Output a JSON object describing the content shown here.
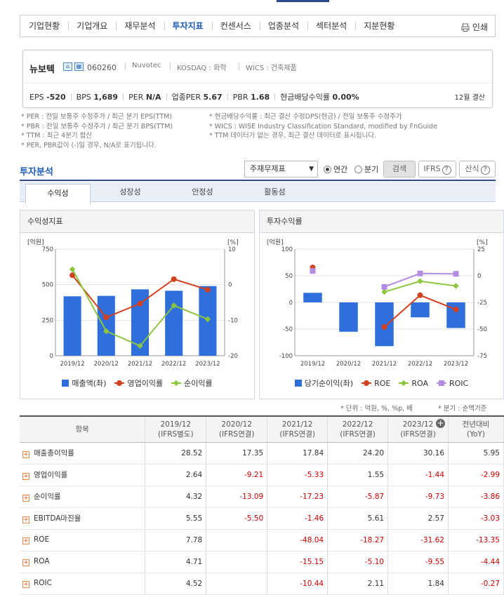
{
  "nav": {
    "tabs": [
      "기업현황",
      "기업개요",
      "재무분석",
      "투자지표",
      "컨센서스",
      "업종분석",
      "섹터분석",
      "지분현황"
    ],
    "active_index": 3,
    "print_label": "인쇄"
  },
  "company": {
    "name": "뉴보텍",
    "code": "060260",
    "eng_name": "Nuvotec",
    "market": "KOSDAQ : 화학",
    "wics": "WICS : 건축제품",
    "eps_label": "EPS",
    "eps_value": "-520",
    "bps_label": "BPS",
    "bps_value": "1,689",
    "per_label": "PER",
    "per_value": "N/A",
    "sector_per_label": "업종PER",
    "sector_per_value": "5.67",
    "pbr_label": "PBR",
    "pbr_value": "1.68",
    "div_label": "현금배당수익률",
    "div_value": "0.00%",
    "settlement": "12월 결산"
  },
  "notes_left": [
    "* PER : 전일 보통주 수정주가 / 최근 분기 EPS(TTM)",
    "* PBR : 전일 보통주 수정주가 / 최근 분기 BPS(TTM)",
    "* TTM : 최근 4분기 합산",
    "* PER, PBR값이 (-)일 경우, N/A로 표기됩니다."
  ],
  "notes_right": [
    "* 현금배당수익률 : 최근 결산 수정DPS(현금) / 전일 보통주 수정주가",
    "* WICS : WISE Industry Classification Standard, modified by FnGuide",
    "* TTM 데이터가 없는 경우, 최근 결산 데이터로 표시됩니다."
  ],
  "analysis": {
    "title": "투자분석",
    "select_value": "주재무제표",
    "radio_annual": "연간",
    "radio_quarter": "분기",
    "search_label": "검색",
    "ifrs_label": "IFRS",
    "calc_label": "산식",
    "tabs": [
      "수익성",
      "성장성",
      "안정성",
      "활동성"
    ]
  },
  "chart_left_title": "수익성지표",
  "chart_right_title": "투자수익률",
  "chart_data": [
    {
      "type": "bar",
      "categories": [
        "2019/12",
        "2020/12",
        "2021/12",
        "2022/12",
        "2023/12"
      ],
      "ylabel": "[억원]",
      "y2label": "[%]",
      "ylim": [
        0,
        750
      ],
      "y2lim": [
        -20,
        10
      ],
      "yticks": [
        0,
        250,
        500,
        750
      ],
      "y2ticks": [
        -20,
        -10,
        0,
        10
      ],
      "series": [
        {
          "name": "매출액(좌)",
          "kind": "bar",
          "axis": "left",
          "color": "#2f6fdc",
          "values": [
            418,
            421,
            467,
            457,
            490
          ]
        },
        {
          "name": "영업이익률",
          "kind": "line",
          "axis": "right",
          "color": "#d1401f",
          "values": [
            2.64,
            -9.21,
            -5.33,
            1.55,
            -1.44
          ]
        },
        {
          "name": "순이익률",
          "kind": "line",
          "axis": "right",
          "color": "#8cc63e",
          "values": [
            4.32,
            -13.09,
            -17.23,
            -5.87,
            -9.73
          ]
        }
      ]
    },
    {
      "type": "bar",
      "categories": [
        "2019/12",
        "2020/12",
        "2021/12",
        "2022/12",
        "2023/12"
      ],
      "ylabel": "[억원]",
      "y2label": "[%]",
      "ylim": [
        -100,
        100
      ],
      "y2lim": [
        -75,
        25
      ],
      "yticks": [
        -100,
        -50,
        0,
        50,
        100
      ],
      "y2ticks": [
        -75,
        -50,
        -25,
        0,
        25
      ],
      "series": [
        {
          "name": "당기순이익(좌)",
          "kind": "bar",
          "axis": "left",
          "color": "#2f6fdc",
          "values": [
            18,
            -55,
            -82,
            -28,
            -48
          ]
        },
        {
          "name": "ROE",
          "kind": "line",
          "axis": "right",
          "color": "#d1401f",
          "values": [
            7.78,
            null,
            -48.04,
            -18.27,
            -31.62
          ]
        },
        {
          "name": "ROA",
          "kind": "line",
          "axis": "right",
          "color": "#8cc63e",
          "values": [
            4.71,
            null,
            -15.15,
            -5.1,
            -9.55
          ]
        },
        {
          "name": "ROIC",
          "kind": "line",
          "axis": "right",
          "color": "#b48be3",
          "values": [
            4.52,
            null,
            -10.44,
            2.11,
            1.84
          ]
        }
      ]
    }
  ],
  "units_note": "* 단위 : 억원, %, %p, 배",
  "period_note": "* 분기 : 순액기준",
  "table": {
    "headers": [
      {
        "line1": "항목",
        "line2": ""
      },
      {
        "line1": "2019/12",
        "line2": "(IFRS별도)"
      },
      {
        "line1": "2020/12",
        "line2": "(IFRS연결)"
      },
      {
        "line1": "2021/12",
        "line2": "(IFRS연결)"
      },
      {
        "line1": "2022/12",
        "line2": "(IFRS연결)"
      },
      {
        "line1": "2023/12",
        "line2": "(IFRS연결)"
      },
      {
        "line1": "전년대비",
        "line2": "(YoY)"
      }
    ],
    "rows": [
      {
        "label": "매출총이익률",
        "values": [
          "28.52",
          "17.35",
          "17.84",
          "24.20",
          "30.16",
          "5.95"
        ]
      },
      {
        "label": "영업이익률",
        "values": [
          "2.64",
          "-9.21",
          "-5.33",
          "1.55",
          "-1.44",
          "-2.99"
        ]
      },
      {
        "label": "순이익률",
        "values": [
          "4.32",
          "-13.09",
          "-17.23",
          "-5.87",
          "-9.73",
          "-3.86"
        ]
      },
      {
        "label": "EBITDA마진율",
        "values": [
          "5.55",
          "-5.50",
          "-1.46",
          "5.61",
          "2.57",
          "-3.03"
        ]
      },
      {
        "label": "ROE",
        "values": [
          "7.78",
          "",
          "-48.04",
          "-18.27",
          "-31.62",
          "-13.35"
        ]
      },
      {
        "label": "ROA",
        "values": [
          "4.71",
          "",
          "-15.15",
          "-5.10",
          "-9.55",
          "-4.44"
        ]
      },
      {
        "label": "ROIC",
        "values": [
          "4.52",
          "",
          "-10.44",
          "2.11",
          "1.84",
          "-0.27"
        ]
      }
    ]
  }
}
